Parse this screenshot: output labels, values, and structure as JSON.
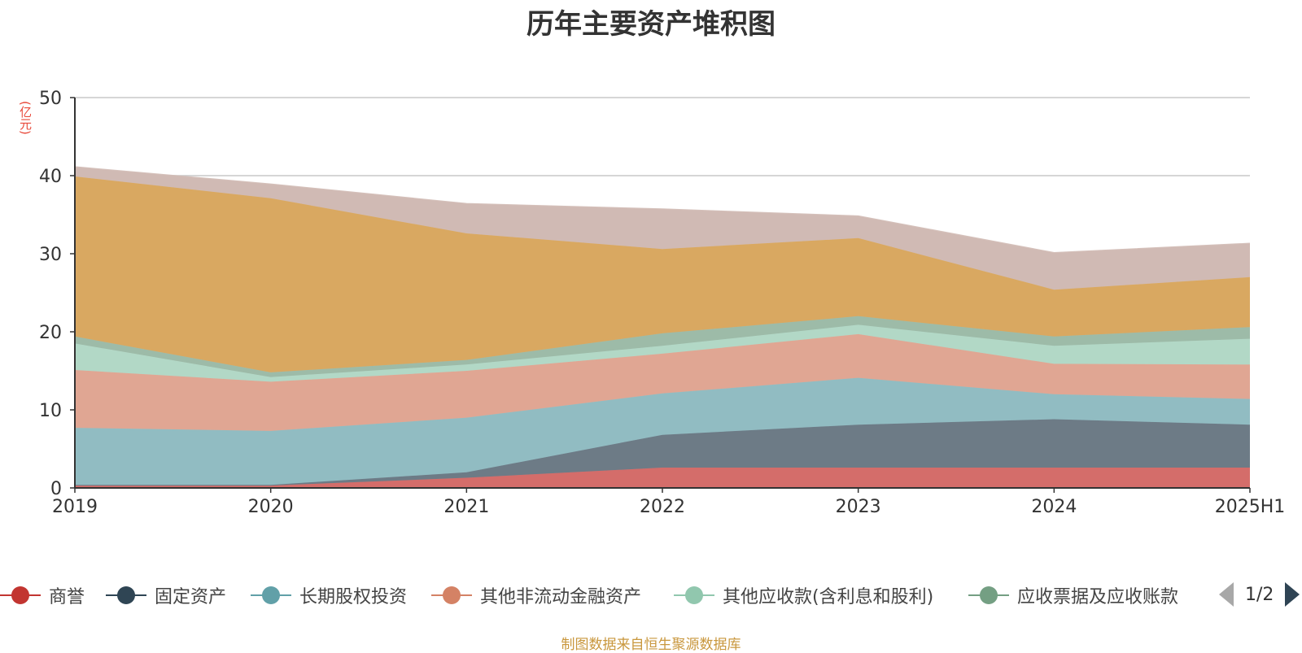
{
  "title": "历年主要资产堆积图",
  "y_unit": "(亿元)",
  "source": "制图数据来自恒生聚源数据库",
  "legend_page": "1/2",
  "chart_data": {
    "type": "area",
    "stacked": true,
    "categories": [
      "2019",
      "2020",
      "2021",
      "2022",
      "2023",
      "2024",
      "2025H1"
    ],
    "ylim": [
      0,
      50
    ],
    "yticks": [
      0,
      10,
      20,
      30,
      40,
      50
    ],
    "grid": true,
    "legend_position": "bottom",
    "series": [
      {
        "name": "商誉",
        "color": "#c23531",
        "area_color": "#d46d6a",
        "legend": true,
        "values": [
          0.3,
          0.3,
          1.3,
          2.6,
          2.6,
          2.6,
          2.6
        ]
      },
      {
        "name": "固定资产",
        "color": "#2f4554",
        "area_color": "#6d7b86",
        "legend": true,
        "values": [
          0.1,
          0.1,
          0.7,
          4.2,
          5.5,
          6.2,
          5.5
        ]
      },
      {
        "name": "长期股权投资",
        "color": "#61a0a8",
        "area_color": "#91bcc2",
        "legend": true,
        "values": [
          7.3,
          6.9,
          7.0,
          5.3,
          6.0,
          3.2,
          3.3
        ]
      },
      {
        "name": "其他非流动金融资产",
        "color": "#d48265",
        "area_color": "#e0a693",
        "legend": true,
        "values": [
          7.4,
          6.3,
          6.0,
          5.1,
          5.6,
          3.9,
          4.4
        ]
      },
      {
        "name": "其他应收款(含利息和股利)",
        "color": "#91c7ae",
        "area_color": "#b2d8c6",
        "legend": true,
        "values": [
          3.4,
          0.6,
          0.8,
          1.0,
          1.2,
          2.3,
          3.3
        ]
      },
      {
        "name": "应收票据及应收账款",
        "color": "#749f83",
        "area_color": "#9dbba8",
        "legend": true,
        "values": [
          0.9,
          0.6,
          0.6,
          1.6,
          1.1,
          1.2,
          1.5
        ]
      },
      {
        "name": "",
        "color": "#ca8622",
        "area_color": "#d9a861",
        "legend": false,
        "values": [
          20.5,
          22.3,
          16.2,
          10.8,
          10.0,
          6.0,
          6.4
        ]
      },
      {
        "name": "",
        "color": "#bda29a",
        "area_color": "#d0bab4",
        "legend": false,
        "values": [
          1.2,
          1.8,
          3.8,
          5.1,
          2.8,
          4.7,
          4.3
        ]
      }
    ]
  }
}
